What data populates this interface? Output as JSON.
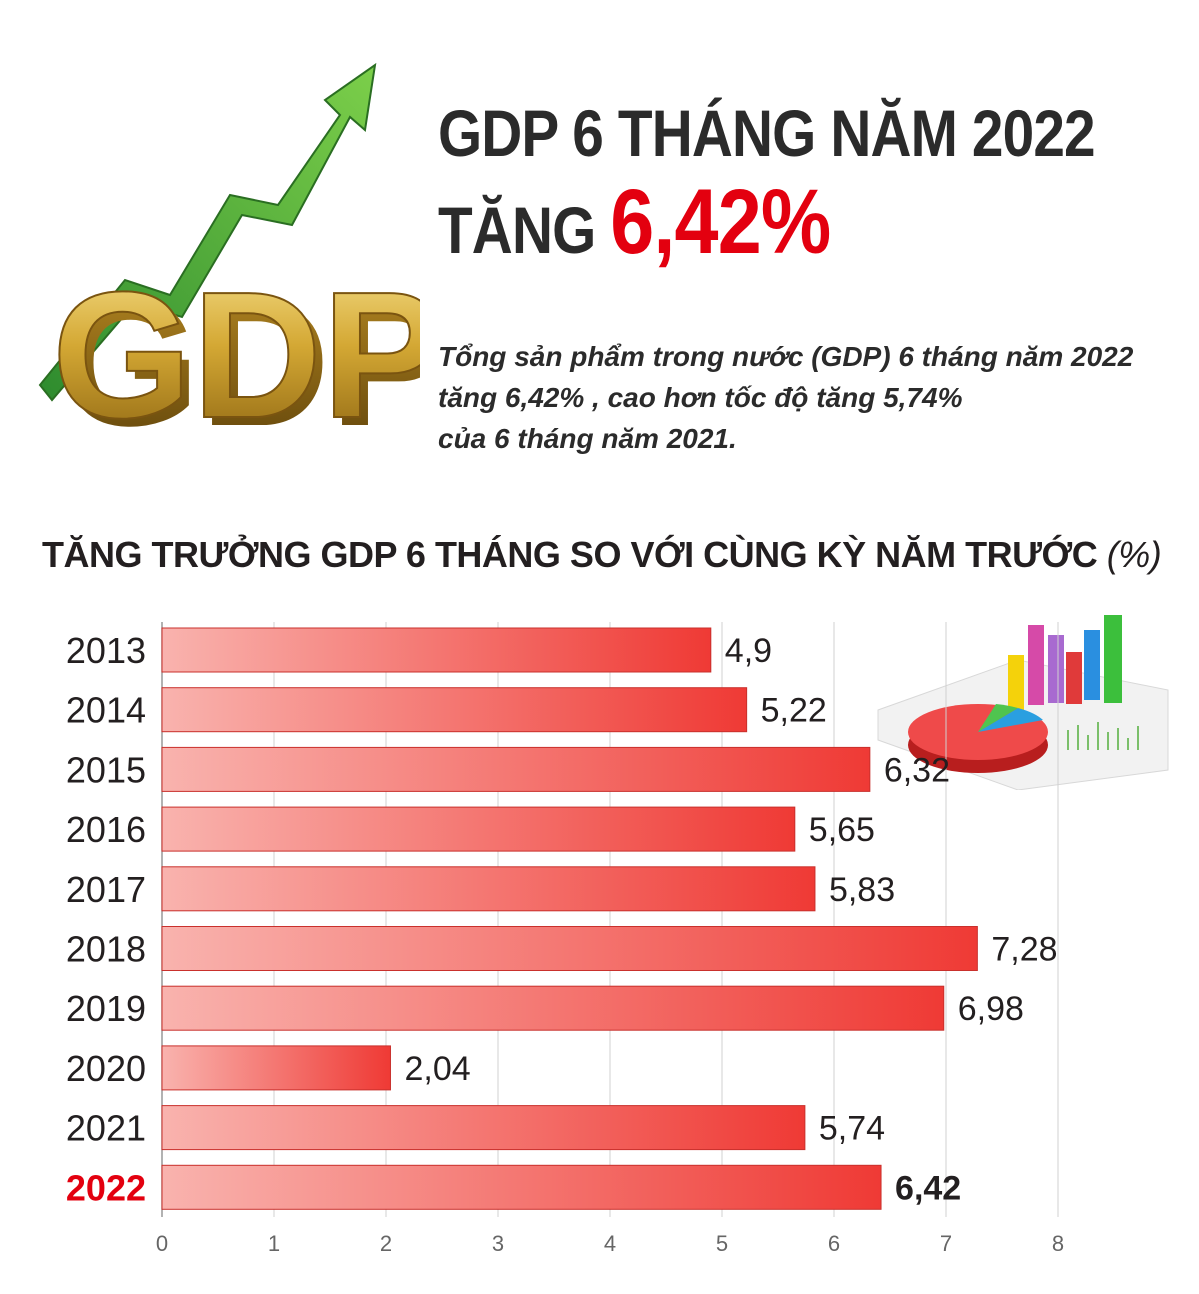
{
  "header": {
    "title_line1": "GDP 6 THÁNG NĂM 2022",
    "title_line2_prefix": "TĂNG",
    "title_line2_value": "6,42%",
    "logo_text": "GDP"
  },
  "summary": {
    "line1": "Tổng sản phẩm trong nước (GDP) 6 tháng năm 2022",
    "line2": "tăng 6,42% , cao hơn tốc độ tăng 5,74%",
    "line3": "của 6 tháng năm 2021."
  },
  "colors": {
    "accent_red": "#e3000f",
    "bar_light": "#f8aaa6",
    "bar_dark": "#ef3a35",
    "arrow_green": "#4caf50",
    "gold": "#c9a33a"
  },
  "chart_data": {
    "type": "bar",
    "orientation": "horizontal",
    "title": "TĂNG TRƯỞNG GDP 6 THÁNG SO VỚI CÙNG KỲ NĂM TRƯỚC",
    "title_unit": "(%)",
    "categories": [
      "2013",
      "2014",
      "2015",
      "2016",
      "2017",
      "2018",
      "2019",
      "2020",
      "2021",
      "2022"
    ],
    "values": [
      4.9,
      5.22,
      6.32,
      5.65,
      5.83,
      7.28,
      6.98,
      2.04,
      5.74,
      6.42
    ],
    "value_labels": [
      "4,9",
      "5,22",
      "6,32",
      "5,65",
      "5,83",
      "7,28",
      "6,98",
      "2,04",
      "5,74",
      "6,42"
    ],
    "highlight_category": "2022",
    "x_ticks": [
      "0",
      "1",
      "2",
      "3",
      "4",
      "5",
      "6",
      "7",
      "8"
    ],
    "xlim": [
      0,
      8
    ],
    "grid": true
  }
}
